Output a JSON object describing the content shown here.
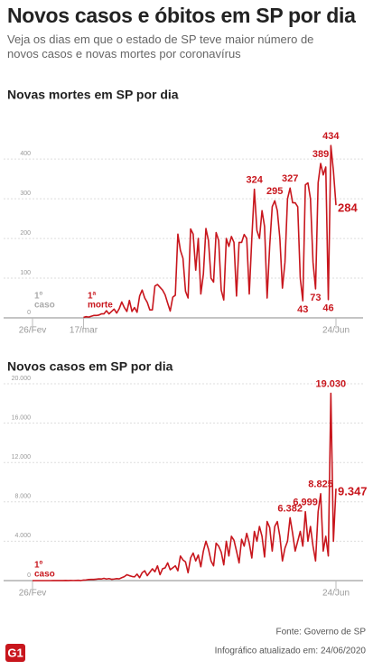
{
  "header": {
    "title": "Novos casos e óbitos em SP por dia",
    "subtitle": "Veja os dias em que o estado de SP teve maior número de novos casos e novas mortes por coronavírus"
  },
  "chart_data": [
    {
      "type": "line",
      "title": "Novas mortes em SP por dia",
      "color": "#c8161d",
      "grid": true,
      "ylim": [
        0,
        480
      ],
      "yticks": [
        0,
        100,
        200,
        300,
        400
      ],
      "categories": [
        "26/Fev",
        null,
        null,
        null,
        null,
        null,
        null,
        null,
        null,
        null,
        null,
        null,
        null,
        null,
        null,
        null,
        null,
        null,
        null,
        null,
        "17/mar",
        null,
        null,
        null,
        null,
        null,
        null,
        null,
        null,
        null,
        null,
        null,
        null,
        null,
        null,
        null,
        null,
        null,
        null,
        null,
        null,
        null,
        null,
        null,
        null,
        null,
        null,
        null,
        null,
        null,
        null,
        null,
        null,
        null,
        null,
        null,
        null,
        null,
        null,
        null,
        null,
        null,
        null,
        null,
        null,
        null,
        null,
        null,
        null,
        null,
        null,
        null,
        null,
        null,
        null,
        null,
        null,
        null,
        null,
        null,
        null,
        null,
        null,
        null,
        null,
        null,
        null,
        null,
        null,
        null,
        null,
        null,
        null,
        null,
        null,
        null,
        null,
        null,
        null,
        null,
        null,
        null,
        null,
        null,
        null,
        null,
        null,
        null,
        null,
        null,
        null,
        null,
        null,
        null,
        null,
        null,
        null,
        null,
        null,
        "24/Jun"
      ],
      "values": [
        null,
        null,
        null,
        null,
        null,
        null,
        null,
        null,
        null,
        null,
        null,
        null,
        null,
        null,
        null,
        null,
        null,
        null,
        null,
        null,
        1,
        3,
        2,
        4,
        6,
        6,
        7,
        10,
        10,
        18,
        10,
        16,
        22,
        12,
        23,
        40,
        26,
        16,
        44,
        16,
        26,
        14,
        55,
        70,
        50,
        39,
        20,
        20,
        80,
        84,
        77,
        70,
        58,
        37,
        17,
        52,
        57,
        211,
        170,
        150,
        67,
        50,
        224,
        211,
        120,
        200,
        60,
        110,
        225,
        195,
        100,
        90,
        215,
        195,
        70,
        45,
        200,
        180,
        205,
        190,
        55,
        190,
        190,
        210,
        200,
        60,
        200,
        324,
        220,
        200,
        270,
        230,
        50,
        180,
        280,
        295,
        270,
        200,
        75,
        140,
        300,
        327,
        290,
        290,
        280,
        100,
        43,
        335,
        340,
        300,
        140,
        73,
        340,
        389,
        360,
        380,
        46,
        434,
        370,
        284
      ],
      "value_labels": [
        null,
        null,
        null,
        null,
        null,
        null,
        null,
        null,
        null,
        null,
        null,
        null,
        null,
        null,
        null,
        null,
        null,
        null,
        null,
        null,
        null,
        null,
        null,
        null,
        null,
        null,
        null,
        null,
        null,
        null,
        null,
        null,
        null,
        null,
        null,
        null,
        null,
        null,
        null,
        null,
        null,
        null,
        null,
        null,
        null,
        null,
        null,
        null,
        null,
        null,
        null,
        null,
        null,
        null,
        null,
        null,
        null,
        null,
        null,
        null,
        null,
        null,
        null,
        null,
        null,
        null,
        null,
        null,
        null,
        null,
        null,
        null,
        null,
        null,
        null,
        null,
        null,
        null,
        null,
        null,
        null,
        null,
        null,
        null,
        null,
        null,
        null,
        "324",
        null,
        null,
        null,
        null,
        null,
        null,
        null,
        "295",
        null,
        null,
        null,
        null,
        null,
        "327",
        null,
        null,
        null,
        null,
        "43",
        null,
        null,
        null,
        null,
        "73",
        null,
        "389",
        null,
        null,
        "46",
        "434",
        null,
        "284"
      ],
      "annotations": [
        {
          "lines": [
            "1º",
            "caso"
          ],
          "color": "#aaaaaa"
        },
        {
          "lines": [
            "1ª",
            "morte"
          ],
          "color": "#c8161d"
        }
      ]
    },
    {
      "type": "line",
      "title": "Novos casos em SP por dia",
      "color": "#c8161d",
      "grid": true,
      "ylim": [
        0,
        20000
      ],
      "yticks": [
        0,
        {
          "value": 4000,
          "label": "4.000"
        },
        {
          "value": 8000,
          "label": "8.000"
        },
        {
          "value": 12000,
          "label": "12.000"
        },
        {
          "value": 16000,
          "label": "16.000"
        },
        {
          "value": 20000,
          "label": "20.000"
        }
      ],
      "categories": [
        "26/Fev",
        null,
        null,
        null,
        null,
        null,
        null,
        null,
        null,
        null,
        null,
        null,
        null,
        null,
        null,
        null,
        null,
        null,
        null,
        null,
        null,
        null,
        null,
        null,
        null,
        null,
        null,
        null,
        null,
        null,
        null,
        null,
        null,
        null,
        null,
        null,
        null,
        null,
        null,
        null,
        null,
        null,
        null,
        null,
        null,
        null,
        null,
        null,
        null,
        null,
        null,
        null,
        null,
        null,
        null,
        null,
        null,
        null,
        null,
        null,
        null,
        null,
        null,
        null,
        null,
        null,
        null,
        null,
        null,
        null,
        null,
        null,
        null,
        null,
        null,
        null,
        null,
        null,
        null,
        null,
        null,
        null,
        null,
        null,
        null,
        null,
        null,
        null,
        null,
        null,
        null,
        null,
        null,
        null,
        null,
        null,
        null,
        null,
        null,
        null,
        null,
        null,
        null,
        null,
        null,
        null,
        null,
        null,
        null,
        null,
        null,
        null,
        null,
        null,
        null,
        null,
        null,
        null,
        null,
        "24/Jun"
      ],
      "values": [
        1,
        0,
        0,
        1,
        0,
        0,
        1,
        1,
        3,
        3,
        6,
        3,
        5,
        13,
        6,
        16,
        12,
        18,
        30,
        10,
        55,
        67,
        108,
        125,
        121,
        146,
        174,
        163,
        232,
        159,
        206,
        135,
        161,
        200,
        176,
        300,
        400,
        600,
        500,
        420,
        380,
        660,
        300,
        800,
        1000,
        500,
        850,
        1200,
        900,
        1500,
        600,
        1200,
        1300,
        1800,
        1100,
        1300,
        1500,
        1000,
        2500,
        2100,
        1900,
        800,
        2300,
        2800,
        2000,
        2600,
        1400,
        3000,
        4000,
        3200,
        2000,
        1500,
        3800,
        3500,
        2900,
        1600,
        4000,
        2500,
        4500,
        4100,
        3000,
        1800,
        4200,
        3500,
        4800,
        3800,
        2300,
        5000,
        4000,
        5500,
        4500,
        2400,
        6000,
        5400,
        3000,
        5500,
        6000,
        4500,
        2000,
        3300,
        4000,
        6382,
        4800,
        3000,
        4000,
        5000,
        3500,
        6999,
        4000,
        5500,
        3500,
        2000,
        7000,
        8825,
        3000,
        4500,
        2500,
        19030,
        4000,
        9347
      ],
      "value_labels": [
        null,
        null,
        null,
        null,
        null,
        null,
        null,
        null,
        null,
        null,
        null,
        null,
        null,
        null,
        null,
        null,
        null,
        null,
        null,
        null,
        null,
        null,
        null,
        null,
        null,
        null,
        null,
        null,
        null,
        null,
        null,
        null,
        null,
        null,
        null,
        null,
        null,
        null,
        null,
        null,
        null,
        null,
        null,
        null,
        null,
        null,
        null,
        null,
        null,
        null,
        null,
        null,
        null,
        null,
        null,
        null,
        null,
        null,
        null,
        null,
        null,
        null,
        null,
        null,
        null,
        null,
        null,
        null,
        null,
        null,
        null,
        null,
        null,
        null,
        null,
        null,
        null,
        null,
        null,
        null,
        null,
        null,
        null,
        null,
        null,
        null,
        null,
        null,
        null,
        null,
        null,
        null,
        null,
        null,
        null,
        null,
        null,
        null,
        null,
        null,
        null,
        "6.382",
        null,
        null,
        null,
        null,
        null,
        "6.999",
        null,
        null,
        null,
        null,
        null,
        "8.825",
        null,
        null,
        null,
        "19.030",
        null,
        "9.347"
      ],
      "annotations": [
        {
          "lines": [
            "1º",
            "caso"
          ],
          "color": "#c8161d"
        }
      ]
    }
  ],
  "footer": {
    "source": "Fonte: Governo de SP",
    "updated": "Infográfico atualizado em: 24/06/2020",
    "logo": "G1"
  }
}
